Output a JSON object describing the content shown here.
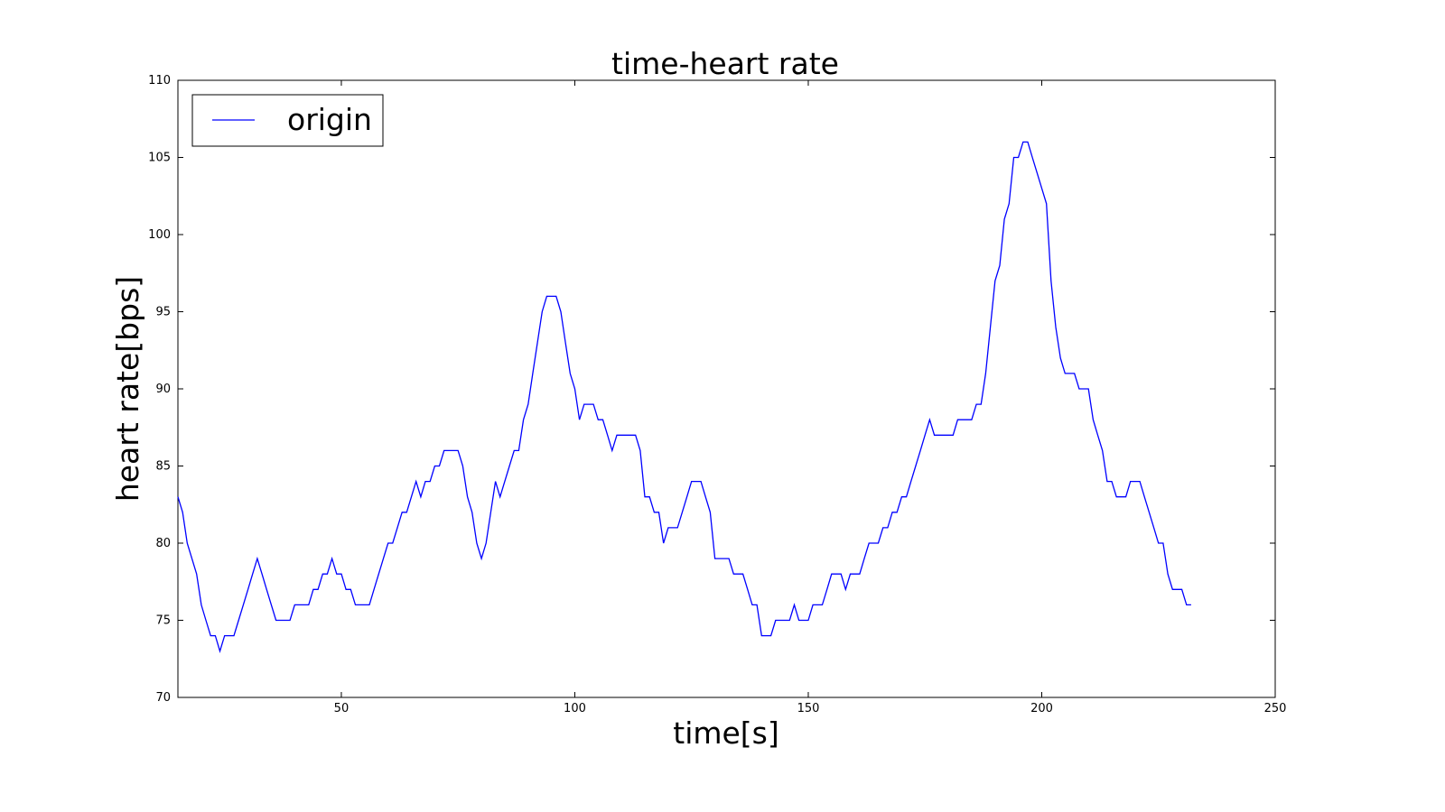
{
  "chart_data": {
    "type": "line",
    "title": "time-heart rate",
    "xlabel": "time[s]",
    "ylabel": "heart rate[bps]",
    "xlim": [
      15,
      250
    ],
    "ylim": [
      70,
      110
    ],
    "xticks": [
      50,
      100,
      150,
      200,
      250
    ],
    "yticks": [
      70,
      75,
      80,
      85,
      90,
      95,
      100,
      105,
      110
    ],
    "grid": false,
    "legend_position": "top-left",
    "series": [
      {
        "name": "origin",
        "color": "#0000ff",
        "x": [
          15,
          16,
          17,
          18,
          19,
          20,
          21,
          22,
          23,
          24,
          25,
          26,
          27,
          28,
          29,
          30,
          31,
          32,
          33,
          34,
          35,
          36,
          37,
          38,
          39,
          40,
          41,
          42,
          43,
          44,
          45,
          46,
          47,
          48,
          49,
          50,
          51,
          52,
          53,
          54,
          55,
          56,
          57,
          58,
          59,
          60,
          61,
          62,
          63,
          64,
          65,
          66,
          67,
          68,
          69,
          70,
          71,
          72,
          73,
          74,
          75,
          76,
          77,
          78,
          79,
          80,
          81,
          82,
          83,
          84,
          85,
          86,
          87,
          88,
          89,
          90,
          91,
          92,
          93,
          94,
          95,
          96,
          97,
          98,
          99,
          100,
          101,
          102,
          103,
          104,
          105,
          106,
          107,
          108,
          109,
          110,
          111,
          112,
          113,
          114,
          115,
          116,
          117,
          118,
          119,
          120,
          121,
          122,
          123,
          124,
          125,
          126,
          127,
          128,
          129,
          130,
          131,
          132,
          133,
          134,
          135,
          136,
          137,
          138,
          139,
          140,
          141,
          142,
          143,
          144,
          145,
          146,
          147,
          148,
          149,
          150,
          151,
          152,
          153,
          154,
          155,
          156,
          157,
          158,
          159,
          160,
          161,
          162,
          163,
          164,
          165,
          166,
          167,
          168,
          169,
          170,
          171,
          172,
          173,
          174,
          175,
          176,
          177,
          178,
          179,
          180,
          181,
          182,
          183,
          184,
          185,
          186,
          187,
          188,
          189,
          190,
          191,
          192,
          193,
          194,
          195,
          196,
          197,
          198,
          199,
          200,
          201,
          202,
          203,
          204,
          205,
          206,
          207,
          208,
          209,
          210,
          211,
          212,
          213,
          214,
          215,
          216,
          217,
          218,
          219,
          220,
          221,
          222,
          223,
          224,
          225,
          226,
          227,
          228,
          229,
          230,
          231,
          232
        ],
        "y": [
          83,
          82,
          80,
          79,
          78,
          76,
          75,
          74,
          74,
          73,
          74,
          74,
          74,
          75,
          76,
          77,
          78,
          79,
          78,
          77,
          76,
          75,
          75,
          75,
          75,
          76,
          76,
          76,
          76,
          77,
          77,
          78,
          78,
          79,
          78,
          78,
          77,
          77,
          76,
          76,
          76,
          76,
          77,
          78,
          79,
          80,
          80,
          81,
          82,
          82,
          83,
          84,
          83,
          84,
          84,
          85,
          85,
          86,
          86,
          86,
          86,
          85,
          83,
          82,
          80,
          79,
          80,
          82,
          84,
          83,
          84,
          85,
          86,
          86,
          88,
          89,
          91,
          93,
          95,
          96,
          96,
          96,
          95,
          93,
          91,
          90,
          88,
          89,
          89,
          89,
          88,
          88,
          87,
          86,
          87,
          87,
          87,
          87,
          87,
          86,
          83,
          83,
          82,
          82,
          80,
          81,
          81,
          81,
          82,
          83,
          84,
          84,
          84,
          83,
          82,
          79,
          79,
          79,
          79,
          78,
          78,
          78,
          77,
          76,
          76,
          74,
          74,
          74,
          75,
          75,
          75,
          75,
          76,
          75,
          75,
          75,
          76,
          76,
          76,
          77,
          78,
          78,
          78,
          77,
          78,
          78,
          78,
          79,
          80,
          80,
          80,
          81,
          81,
          82,
          82,
          83,
          83,
          84,
          85,
          86,
          87,
          88,
          87,
          87,
          87,
          87,
          87,
          88,
          88,
          88,
          88,
          89,
          89,
          91,
          94,
          97,
          98,
          101,
          102,
          105,
          105,
          106,
          106,
          105,
          104,
          103,
          102,
          97,
          94,
          92,
          91,
          91,
          91,
          90,
          90,
          90,
          88,
          87,
          86,
          84,
          84,
          83,
          83,
          83,
          84,
          84,
          84,
          83,
          82,
          81,
          80,
          80,
          78,
          77,
          77,
          77,
          76,
          76
        ]
      }
    ]
  }
}
